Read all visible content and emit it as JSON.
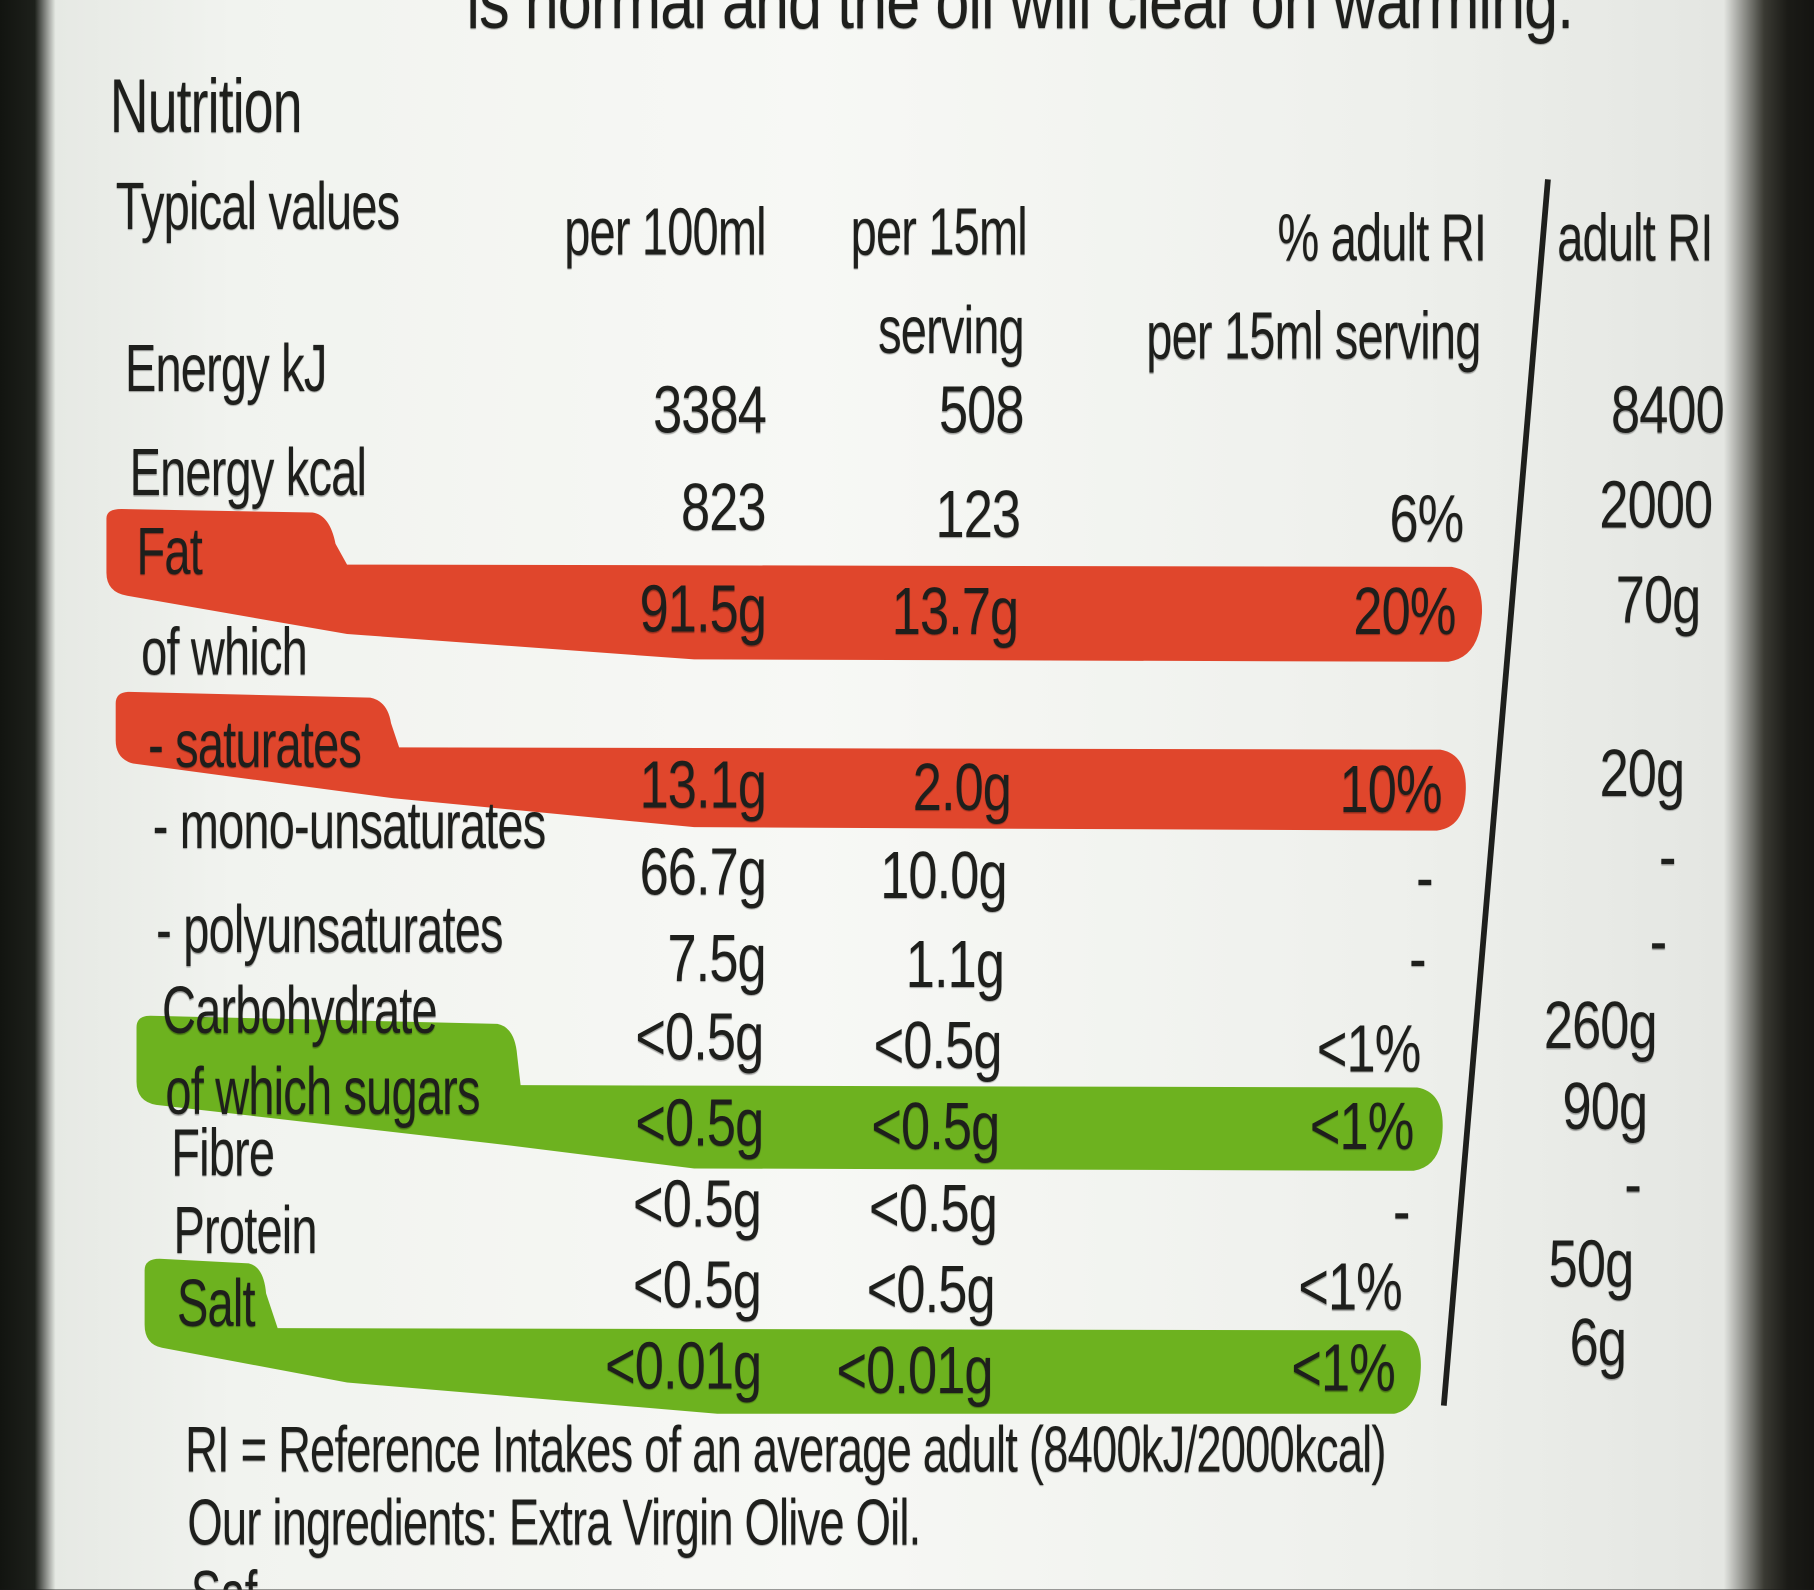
{
  "top_text": "is normal and the oil will clear on warming.",
  "title": "Nutrition",
  "headers": {
    "typical": "Typical values",
    "per100": "per 100ml",
    "per15": "per 15ml",
    "per15_sub": "serving",
    "pct": "% adult RI",
    "pct_sub": "per 15ml serving",
    "adult": "adult RI"
  },
  "rows": [
    {
      "label": "Energy kJ",
      "per100": "3384",
      "per15": "508",
      "pct": "",
      "ri": "8400"
    },
    {
      "label": "Energy kcal",
      "per100": "823",
      "per15": "123",
      "pct": "6%",
      "ri": "2000"
    },
    {
      "label": "Fat",
      "per100": "91.5g",
      "per15": "13.7g",
      "pct": "20%",
      "ri": "70g",
      "band": "red"
    },
    {
      "label": "of which"
    },
    {
      "label": "- saturates",
      "per100": "13.1g",
      "per15": "2.0g",
      "pct": "10%",
      "ri": "20g",
      "band": "red"
    },
    {
      "label": "- mono-unsaturates",
      "per100": "66.7g",
      "per15": "10.0g",
      "pct": "-",
      "ri": "-"
    },
    {
      "label": "- polyunsaturates",
      "per100": "7.5g",
      "per15": "1.1g",
      "pct": "-",
      "ri": "-"
    },
    {
      "label": "Carbohydrate",
      "per100": "<0.5g",
      "per15": "<0.5g",
      "pct": "<1%",
      "ri": "260g"
    },
    {
      "label": "of which sugars",
      "per100": "<0.5g",
      "per15": "<0.5g",
      "pct": "<1%",
      "ri": "90g",
      "band": "green"
    },
    {
      "label": "Fibre",
      "per100": "<0.5g",
      "per15": "<0.5g",
      "pct": "-",
      "ri": "-"
    },
    {
      "label": "Protein",
      "per100": "<0.5g",
      "per15": "<0.5g",
      "pct": "<1%",
      "ri": "50g"
    },
    {
      "label": "Salt",
      "per100": "<0.01g",
      "per15": "<0.01g",
      "pct": "<1%",
      "ri": "6g",
      "band": "green"
    }
  ],
  "footer": {
    "ri_note": "RI = Reference Intakes of an average adult (8400kJ/2000kcal)",
    "ingredients": "Our ingredients: Extra Virgin Olive Oil.",
    "cut_text": "Saf"
  },
  "colors": {
    "red": "#e0462c",
    "green": "#6db21f",
    "text": "#1e1f1c"
  }
}
